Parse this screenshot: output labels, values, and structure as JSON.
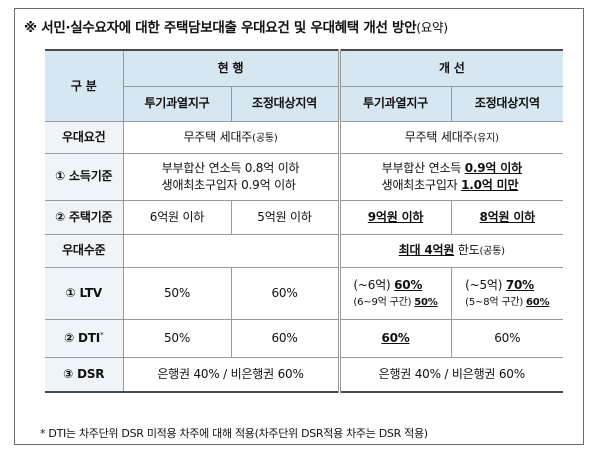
{
  "title": {
    "main": "※ 서민·실수요자에 대한 주택담보대출 우대요건 및 우대혜택 개선 방안",
    "suffix": "(요약)"
  },
  "header": {
    "category": "구 분",
    "current": "현 행",
    "improved": "개 선",
    "zone1": "투기과열지구",
    "zone2": "조정대상지역"
  },
  "rows": {
    "req_label": "우대요건",
    "req_current": "무주택 세대주",
    "req_current_note": "(공통)",
    "req_improved": "무주택 세대주",
    "req_improved_note": "(유지)",
    "income_label": "① 소득기준",
    "income_current_1": "부부합산 연소득 0.8억 이하",
    "income_current_2": "생애최초구입자 0.9억 이하",
    "income_improved_1a": "부부합산 연소득 ",
    "income_improved_1b": "0.9억 이하",
    "income_improved_2a": "생애최초구입자 ",
    "income_improved_2b": "1.0억 미만",
    "house_label": "② 주택기준",
    "house_cur_zone1": "6억원 이하",
    "house_cur_zone2": "5억원 이하",
    "house_imp_zone1": "9억원 이하",
    "house_imp_zone2": "8억원 이하",
    "level_label": "우대수준",
    "level_improved_a": "최대 4억원",
    "level_improved_b": " 한도",
    "level_improved_note": "(공통)",
    "ltv_label": "① LTV",
    "ltv_cur_zone1": "50%",
    "ltv_cur_zone2": "60%",
    "ltv_imp_z1_l1a": "(~6억) ",
    "ltv_imp_z1_l1b": "60%",
    "ltv_imp_z1_l2a": "(6~9억 구간) ",
    "ltv_imp_z1_l2b": "50%",
    "ltv_imp_z2_l1a": "(~5억) ",
    "ltv_imp_z2_l1b": "70%",
    "ltv_imp_z2_l2a": "(5~8억 구간) ",
    "ltv_imp_z2_l2b": "60%",
    "dti_label": "② DTI",
    "dti_sup": "*",
    "dti_cur_zone1": "50%",
    "dti_cur_zone2": "60%",
    "dti_imp_zone1": "60%",
    "dti_imp_zone2": "60%",
    "dsr_label": "③ DSR",
    "dsr_current": "은행권 40% / 비은행권 60%",
    "dsr_improved": "은행권 40% / 비은행권 60%"
  },
  "footnote": "* DTI는 차주단위 DSR 미적용 차주에 대해 적용(차주단위 DSR적용 차주는 DSR 적용)"
}
